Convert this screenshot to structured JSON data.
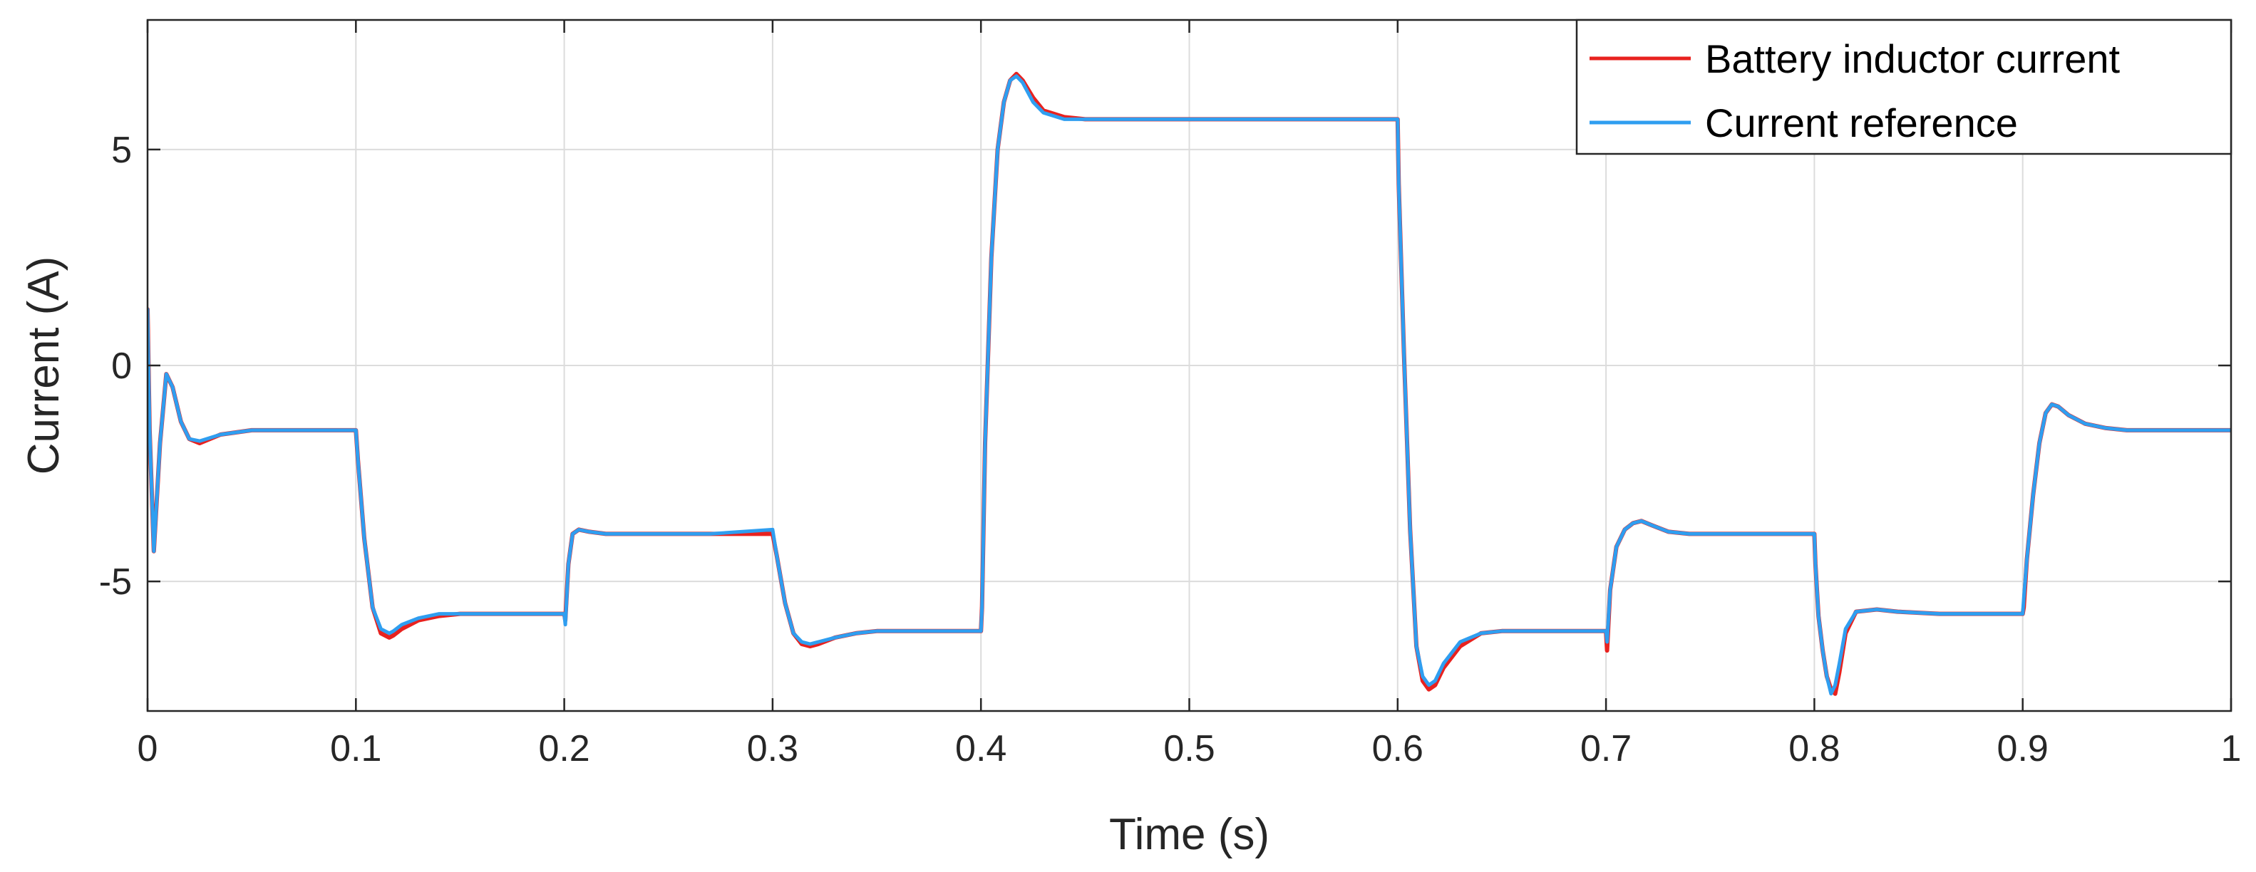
{
  "chart_data": {
    "type": "line",
    "xlabel": "Time (s)",
    "ylabel": "Current (A)",
    "xlim": [
      0,
      1
    ],
    "ylim": [
      -8,
      8
    ],
    "xticks": [
      0,
      0.1,
      0.2,
      0.3,
      0.4,
      0.5,
      0.6,
      0.7,
      0.8,
      0.9,
      1
    ],
    "xtick_labels": [
      "0",
      "0.1",
      "0.2",
      "0.3",
      "0.4",
      "0.5",
      "0.6",
      "0.7",
      "0.8",
      "0.9",
      "1"
    ],
    "yticks": [
      -5,
      0,
      5
    ],
    "ytick_labels": [
      "-5",
      "0",
      "5"
    ],
    "grid": true,
    "legend_position": "top-right",
    "series": [
      {
        "name": "Battery inductor current",
        "color": "#e8221f",
        "x": [
          0,
          0.001,
          0.003,
          0.006,
          0.009,
          0.012,
          0.016,
          0.02,
          0.025,
          0.035,
          0.05,
          0.07,
          0.1,
          0.101,
          0.104,
          0.108,
          0.112,
          0.116,
          0.118,
          0.122,
          0.13,
          0.14,
          0.15,
          0.17,
          0.2,
          0.2005,
          0.202,
          0.204,
          0.207,
          0.212,
          0.22,
          0.24,
          0.27,
          0.3,
          0.302,
          0.306,
          0.31,
          0.314,
          0.318,
          0.322,
          0.33,
          0.34,
          0.35,
          0.37,
          0.4,
          0.4005,
          0.402,
          0.405,
          0.408,
          0.411,
          0.414,
          0.417,
          0.42,
          0.425,
          0.43,
          0.44,
          0.45,
          0.47,
          0.5,
          0.55,
          0.6,
          0.6005,
          0.603,
          0.606,
          0.609,
          0.612,
          0.615,
          0.618,
          0.622,
          0.63,
          0.64,
          0.65,
          0.67,
          0.7,
          0.7005,
          0.702,
          0.705,
          0.709,
          0.713,
          0.717,
          0.722,
          0.73,
          0.74,
          0.75,
          0.77,
          0.8,
          0.8005,
          0.802,
          0.804,
          0.806,
          0.808,
          0.81,
          0.812,
          0.815,
          0.82,
          0.83,
          0.84,
          0.86,
          0.9,
          0.9005,
          0.902,
          0.905,
          0.908,
          0.911,
          0.914,
          0.917,
          0.922,
          0.93,
          0.94,
          0.95,
          0.97,
          1.0
        ],
        "y": [
          1.3,
          -1.5,
          -4.3,
          -1.8,
          -0.2,
          -0.5,
          -1.3,
          -1.7,
          -1.8,
          -1.6,
          -1.5,
          -1.5,
          -1.5,
          -2.2,
          -4.0,
          -5.6,
          -6.2,
          -6.3,
          -6.25,
          -6.1,
          -5.9,
          -5.8,
          -5.75,
          -5.75,
          -5.75,
          -5.9,
          -4.6,
          -3.9,
          -3.8,
          -3.85,
          -3.9,
          -3.9,
          -3.9,
          -3.9,
          -4.4,
          -5.5,
          -6.2,
          -6.45,
          -6.5,
          -6.45,
          -6.3,
          -6.2,
          -6.15,
          -6.15,
          -6.15,
          -5.6,
          -1.8,
          2.5,
          5.0,
          6.1,
          6.6,
          6.75,
          6.6,
          6.2,
          5.9,
          5.75,
          5.7,
          5.7,
          5.7,
          5.7,
          5.7,
          4.2,
          0.3,
          -3.8,
          -6.5,
          -7.3,
          -7.5,
          -7.4,
          -7.0,
          -6.5,
          -6.2,
          -6.15,
          -6.15,
          -6.15,
          -6.6,
          -5.2,
          -4.2,
          -3.8,
          -3.65,
          -3.6,
          -3.7,
          -3.85,
          -3.9,
          -3.9,
          -3.9,
          -3.9,
          -4.6,
          -5.8,
          -6.6,
          -7.2,
          -7.5,
          -7.6,
          -7.1,
          -6.2,
          -5.7,
          -5.65,
          -5.7,
          -5.75,
          -5.75,
          -5.6,
          -4.5,
          -3.0,
          -1.8,
          -1.1,
          -0.9,
          -0.95,
          -1.15,
          -1.35,
          -1.45,
          -1.5,
          -1.5,
          -1.5
        ]
      },
      {
        "name": "Current reference",
        "color": "#2f9ef0",
        "x": [
          0,
          0.001,
          0.003,
          0.006,
          0.009,
          0.012,
          0.016,
          0.02,
          0.025,
          0.035,
          0.05,
          0.07,
          0.1,
          0.101,
          0.104,
          0.108,
          0.112,
          0.116,
          0.118,
          0.122,
          0.13,
          0.14,
          0.15,
          0.17,
          0.2,
          0.2005,
          0.202,
          0.204,
          0.207,
          0.212,
          0.22,
          0.24,
          0.27,
          0.3,
          0.302,
          0.306,
          0.31,
          0.314,
          0.318,
          0.322,
          0.33,
          0.34,
          0.35,
          0.37,
          0.4,
          0.4005,
          0.402,
          0.405,
          0.408,
          0.411,
          0.414,
          0.417,
          0.42,
          0.425,
          0.43,
          0.44,
          0.45,
          0.47,
          0.5,
          0.55,
          0.6,
          0.6005,
          0.603,
          0.606,
          0.609,
          0.612,
          0.615,
          0.618,
          0.622,
          0.63,
          0.64,
          0.65,
          0.67,
          0.7,
          0.7005,
          0.702,
          0.705,
          0.709,
          0.713,
          0.717,
          0.722,
          0.73,
          0.74,
          0.75,
          0.77,
          0.8,
          0.8005,
          0.802,
          0.804,
          0.806,
          0.808,
          0.81,
          0.812,
          0.815,
          0.82,
          0.83,
          0.84,
          0.86,
          0.9,
          0.9005,
          0.902,
          0.905,
          0.908,
          0.911,
          0.914,
          0.917,
          0.922,
          0.93,
          0.94,
          0.95,
          0.97,
          1.0
        ],
        "y": [
          1.3,
          -1.5,
          -4.3,
          -1.8,
          -0.2,
          -0.5,
          -1.3,
          -1.7,
          -1.75,
          -1.6,
          -1.5,
          -1.5,
          -1.5,
          -2.2,
          -4.0,
          -5.6,
          -6.1,
          -6.2,
          -6.15,
          -6.0,
          -5.85,
          -5.75,
          -5.75,
          -5.75,
          -5.75,
          -6.0,
          -4.6,
          -3.9,
          -3.8,
          -3.85,
          -3.9,
          -3.9,
          -3.9,
          -3.8,
          -4.4,
          -5.5,
          -6.2,
          -6.4,
          -6.45,
          -6.4,
          -6.3,
          -6.2,
          -6.15,
          -6.15,
          -6.15,
          -5.6,
          -1.8,
          2.5,
          5.0,
          6.1,
          6.6,
          6.7,
          6.55,
          6.1,
          5.85,
          5.7,
          5.7,
          5.7,
          5.7,
          5.7,
          5.7,
          4.2,
          0.3,
          -3.8,
          -6.5,
          -7.2,
          -7.4,
          -7.3,
          -6.9,
          -6.4,
          -6.2,
          -6.15,
          -6.15,
          -6.15,
          -6.4,
          -5.2,
          -4.2,
          -3.8,
          -3.65,
          -3.6,
          -3.7,
          -3.85,
          -3.9,
          -3.9,
          -3.9,
          -3.9,
          -4.6,
          -5.8,
          -6.6,
          -7.2,
          -7.6,
          -7.4,
          -6.9,
          -6.1,
          -5.7,
          -5.65,
          -5.7,
          -5.75,
          -5.75,
          -5.4,
          -4.5,
          -3.0,
          -1.8,
          -1.1,
          -0.9,
          -0.95,
          -1.15,
          -1.35,
          -1.45,
          -1.5,
          -1.5,
          -1.5
        ]
      }
    ]
  }
}
